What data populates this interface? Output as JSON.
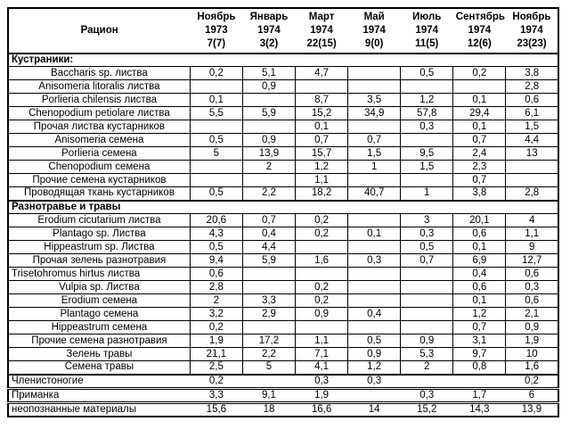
{
  "page": {
    "background": "#ffffff",
    "text_color": "#000000",
    "border_color": "#000000"
  },
  "table": {
    "header": {
      "ration_label": "Рацион",
      "columns": [
        {
          "month": "Ноябрь",
          "year": "1973",
          "count": "7(7)"
        },
        {
          "month": "Январь",
          "year": "1974",
          "count": "3(2)"
        },
        {
          "month": "Март",
          "year": "1974",
          "count": "22(15)"
        },
        {
          "month": "Май",
          "year": "1974",
          "count": "9(0)"
        },
        {
          "month": "Июль",
          "year": "1974",
          "count": "11(5)"
        },
        {
          "month": "Сентябрь",
          "year": "1974",
          "count": "12(6)"
        },
        {
          "month": "Ноябрь",
          "year": "1974",
          "count": "23(23)"
        }
      ]
    },
    "rows": [
      {
        "type": "section",
        "label": "Кустраники:"
      },
      {
        "type": "item",
        "label": "Baccharis sp. листва",
        "values": [
          "0,2",
          "5,1",
          "4,7",
          "",
          "0,5",
          "0,2",
          "3,8"
        ]
      },
      {
        "type": "item",
        "label": "Anisomeria litoralis листва",
        "values": [
          "",
          "0,9",
          "",
          "",
          "",
          "",
          "2,8"
        ]
      },
      {
        "type": "item",
        "label": "Porlieria chilensis листва",
        "values": [
          "0,1",
          "",
          "8,7",
          "3,5",
          "1,2",
          "0,1",
          "0,6"
        ]
      },
      {
        "type": "item",
        "label": "Chenopodium petiolare листва",
        "values": [
          "5,5",
          "5,9",
          "15,2",
          "34,9",
          "57,8",
          "29,4",
          "6,1"
        ]
      },
      {
        "type": "item",
        "label": "Прочая листва кустарников",
        "values": [
          "",
          "",
          "0,1",
          "",
          "0,3",
          "0,1",
          "1,5"
        ]
      },
      {
        "type": "item",
        "label": "Anisomeria семена",
        "values": [
          "0,5",
          "0,9",
          "0,7",
          "0,7",
          "",
          "0,7",
          "4,4"
        ]
      },
      {
        "type": "item",
        "label": "Porlieria семена",
        "values": [
          "5",
          "13,9",
          "15,7",
          "1,5",
          "9,5",
          "2,4",
          "13"
        ]
      },
      {
        "type": "item",
        "label": "Chenopodium семена",
        "values": [
          "",
          "2",
          "1,2",
          "1",
          "1,5",
          "2,3",
          ""
        ]
      },
      {
        "type": "item",
        "label": "Прочие семена кустарников",
        "values": [
          "",
          "",
          "1,1",
          "",
          "",
          "0,7",
          ""
        ]
      },
      {
        "type": "item",
        "label": "Проводящая ткань кустарников",
        "values": [
          "0,5",
          "2,2",
          "18,2",
          "40,7",
          "1",
          "3,8",
          "2,8"
        ]
      },
      {
        "type": "section",
        "label": "Разнотравье и травы"
      },
      {
        "type": "item",
        "label": "Erodium cicutarium листва",
        "values": [
          "20,6",
          "0,7",
          "0,2",
          "",
          "3",
          "20,1",
          "4"
        ]
      },
      {
        "type": "item",
        "label": "Plantago sp. Листва",
        "values": [
          "4,3",
          "0,4",
          "0,2",
          "0,1",
          "0,3",
          "0,6",
          "1,1"
        ]
      },
      {
        "type": "item",
        "label": "Hippeastrum sp. Листва",
        "values": [
          "0,5",
          "4,4",
          "",
          "",
          "0,5",
          "0,1",
          "9"
        ]
      },
      {
        "type": "item",
        "label": "Прочая зелень разнотравия",
        "values": [
          "9,4",
          "5,9",
          "1,6",
          "0,3",
          "0,7",
          "6,9",
          "12,7"
        ]
      },
      {
        "type": "item-left",
        "label": "Trisetohromus hirtus листва",
        "values": [
          "0,6",
          "",
          "",
          "",
          "",
          "0,4",
          "0,6"
        ]
      },
      {
        "type": "item",
        "label": "Vulpia sp. Листва",
        "values": [
          "2,8",
          "",
          "0,2",
          "",
          "",
          "0,6",
          "0,3"
        ]
      },
      {
        "type": "item",
        "label": "Erodium семена",
        "values": [
          "2",
          "3,3",
          "0,2",
          "",
          "",
          "0,1",
          "0,6"
        ]
      },
      {
        "type": "item",
        "label": "Plantago семена",
        "values": [
          "3,2",
          "2,9",
          "0,9",
          "0,4",
          "",
          "1,2",
          "2,1"
        ]
      },
      {
        "type": "item",
        "label": "Hippeastrum семена",
        "values": [
          "0,2",
          "",
          "",
          "",
          "",
          "0,7",
          "0,9"
        ]
      },
      {
        "type": "item",
        "label": "Прочие семена разнотравия",
        "values": [
          "1,9",
          "17,2",
          "1,1",
          "0,5",
          "0,9",
          "3,1",
          "1,9"
        ]
      },
      {
        "type": "item",
        "label": "Зелень травы",
        "values": [
          "21,1",
          "2,2",
          "7,1",
          "0,9",
          "5,3",
          "9,7",
          "10"
        ]
      },
      {
        "type": "item",
        "label": "Семена травы",
        "values": [
          "2,5",
          "5",
          "4,1",
          "1,2",
          "2",
          "0,8",
          "1,6"
        ]
      },
      {
        "type": "summary",
        "label": "Членистоногие",
        "values": [
          "0,2",
          "",
          "0,3",
          "0,3",
          "",
          "",
          "0,2"
        ]
      },
      {
        "type": "summary-double",
        "label": "Приманка",
        "values": [
          "3,3",
          "9,1",
          "1,9",
          "",
          "0,3",
          "1,7",
          "6"
        ]
      },
      {
        "type": "summary-double",
        "label": "неопознанные материалы",
        "values": [
          "15,6",
          "18",
          "16,6",
          "14",
          "15,2",
          "14,3",
          "13,9"
        ]
      }
    ]
  }
}
